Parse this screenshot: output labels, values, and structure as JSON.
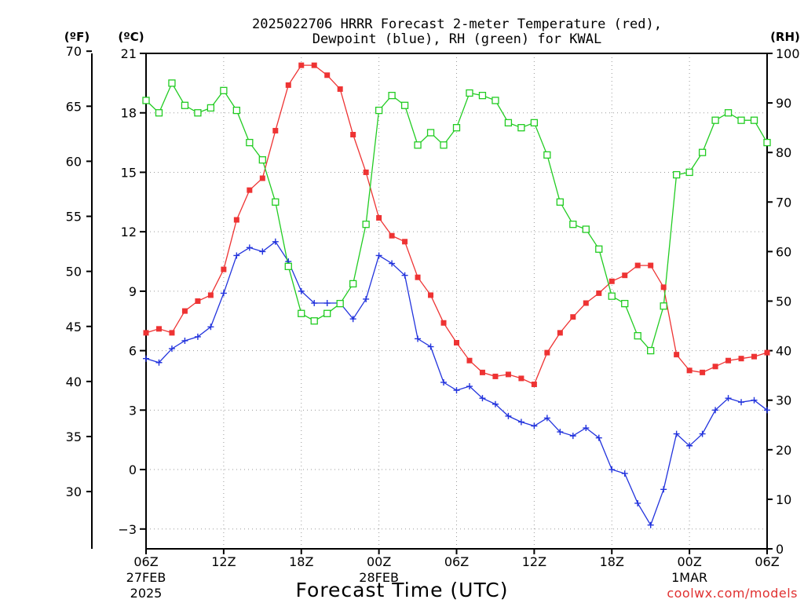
{
  "chart_data": {
    "type": "line",
    "title_line1": "2025022706 HRRR Forecast 2-meter Temperature (red),",
    "title_line2": "Dewpoint (blue), RH (green) for KWAL",
    "xlabel": "Forecast Time (UTC)",
    "credit": "coolwx.com/models",
    "units": {
      "fahrenheit": "(ºF)",
      "celsius": "(ºC)",
      "rh": "(RH)"
    },
    "x_range": [
      0,
      48
    ],
    "ylim_celsius": [
      -4,
      21
    ],
    "ylim_rh": [
      0,
      100
    ],
    "fahrenheit_ticks": [
      "70",
      "65",
      "60",
      "55",
      "50",
      "45",
      "40",
      "35",
      "30"
    ],
    "celsius_ticks": [
      "21",
      "18",
      "15",
      "12",
      "9",
      "6",
      "3",
      "0",
      "−3"
    ],
    "rh_ticks": [
      "100",
      "90",
      "80",
      "70",
      "60",
      "50",
      "40",
      "30",
      "20",
      "10",
      "0"
    ],
    "x_ticks": [
      {
        "label": "06Z",
        "date": "27FEB",
        "year": "2025",
        "h": 0
      },
      {
        "label": "12Z",
        "h": 6
      },
      {
        "label": "18Z",
        "h": 12
      },
      {
        "label": "00Z",
        "date": "28FEB",
        "h": 18
      },
      {
        "label": "06Z",
        "h": 24
      },
      {
        "label": "12Z",
        "h": 30
      },
      {
        "label": "18Z",
        "h": 36
      },
      {
        "label": "00Z",
        "date": "1MAR",
        "h": 42
      },
      {
        "label": "06Z",
        "h": 48
      }
    ],
    "series": [
      {
        "name": "Temperature",
        "color": "#ee3333",
        "axis": "celsius",
        "marker": "filled-square",
        "values": [
          6.9,
          7.1,
          6.9,
          8.0,
          8.5,
          8.8,
          10.1,
          12.6,
          14.1,
          14.7,
          17.1,
          19.4,
          20.4,
          20.4,
          19.9,
          19.2,
          16.9,
          15.0,
          12.7,
          11.8,
          11.5,
          9.7,
          8.8,
          7.4,
          6.4,
          5.5,
          4.9,
          4.7,
          4.8,
          4.6,
          4.3,
          5.9,
          6.9,
          7.7,
          8.4,
          8.9,
          9.5,
          9.8,
          10.3,
          10.3,
          9.2,
          5.8,
          5.0,
          4.9,
          5.2,
          5.5,
          5.6,
          5.7,
          5.9
        ]
      },
      {
        "name": "Dewpoint",
        "color": "#2233dd",
        "axis": "celsius",
        "marker": "plus",
        "values": [
          5.6,
          5.4,
          6.1,
          6.5,
          6.7,
          7.2,
          8.9,
          10.8,
          11.2,
          11.0,
          11.5,
          10.5,
          9.0,
          8.4,
          8.4,
          8.4,
          7.6,
          8.6,
          10.8,
          10.4,
          9.8,
          6.6,
          6.2,
          4.4,
          4.0,
          4.2,
          3.6,
          3.3,
          2.7,
          2.4,
          2.2,
          2.6,
          1.9,
          1.7,
          2.1,
          1.6,
          0.0,
          -0.2,
          -1.7,
          -2.8,
          -1.0,
          1.8,
          1.2,
          1.8,
          3.0,
          3.6,
          3.4,
          3.5,
          3.0
        ]
      },
      {
        "name": "RH",
        "color": "#22cc22",
        "axis": "rh",
        "marker": "open-square",
        "values": [
          90.5,
          88.0,
          94.0,
          89.5,
          88.0,
          89.0,
          92.5,
          88.5,
          82.0,
          78.5,
          70.0,
          57.0,
          47.5,
          46.0,
          47.5,
          49.5,
          53.5,
          65.5,
          88.5,
          91.5,
          89.5,
          81.5,
          84.0,
          81.5,
          85.0,
          92.0,
          91.5,
          90.5,
          86.0,
          85.0,
          86.0,
          79.5,
          70.0,
          65.5,
          64.5,
          60.5,
          51.0,
          49.5,
          43.0,
          40.0,
          49.0,
          75.5,
          76.0,
          80.0,
          86.5,
          88.0,
          86.5,
          86.5,
          82.0
        ]
      }
    ]
  }
}
